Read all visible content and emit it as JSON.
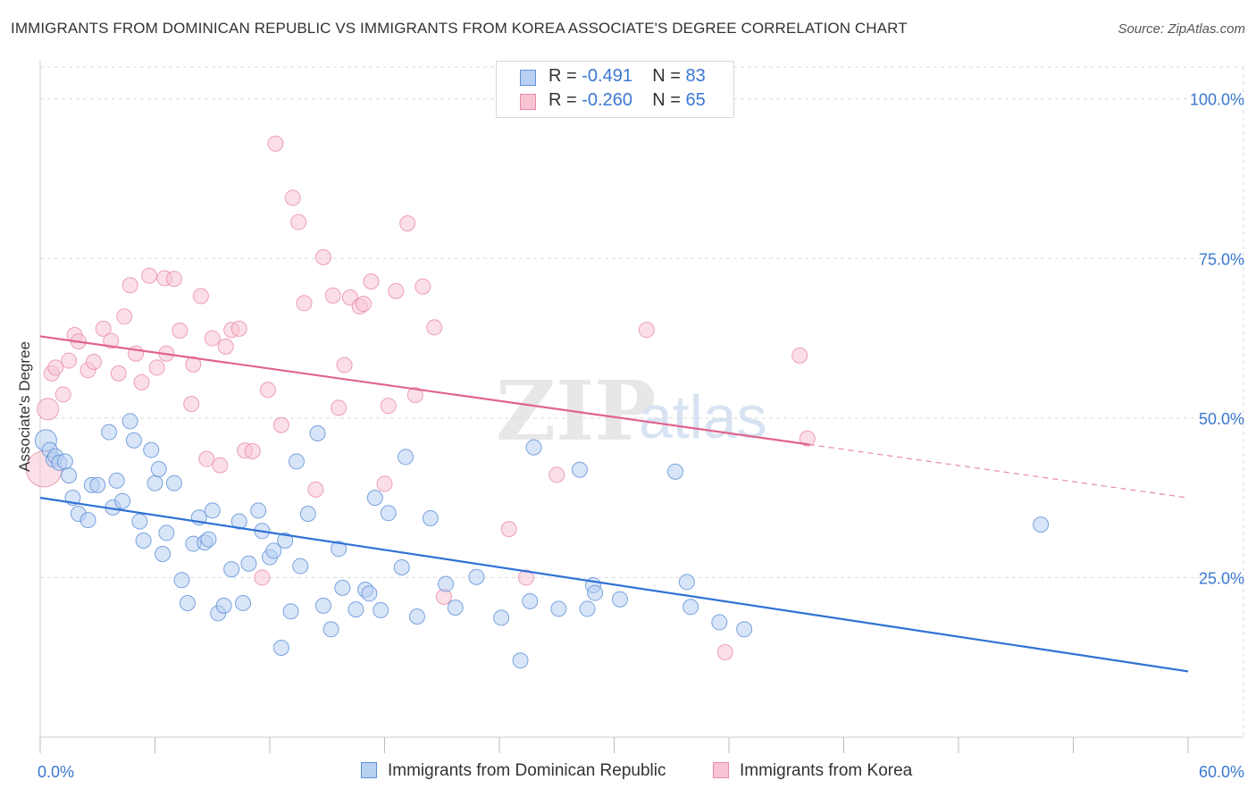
{
  "header": {
    "title": "IMMIGRANTS FROM DOMINICAN REPUBLIC VS IMMIGRANTS FROM KOREA ASSOCIATE'S DEGREE CORRELATION CHART",
    "source": "Source: ZipAtlas.com"
  },
  "watermark": {
    "zip": "ZIP",
    "atlas": "atlas"
  },
  "legend": {
    "r_label": "R =",
    "n_label": "N =",
    "rows": [
      {
        "r": "-0.491",
        "n": "83",
        "color": "#5b8fd6"
      },
      {
        "r": "-0.260",
        "n": "65",
        "color": "#e88aa6"
      }
    ]
  },
  "bottom_legend": [
    {
      "label": "Immigrants from Dominican Republic",
      "color": "#5b8fd6"
    },
    {
      "label": "Immigrants from Korea",
      "color": "#e88aa6"
    }
  ],
  "chart_data": {
    "type": "scatter",
    "title": "IMMIGRANTS FROM DOMINICAN REPUBLIC VS IMMIGRANTS FROM KOREA ASSOCIATE'S DEGREE CORRELATION CHART",
    "ylabel": "Associate's Degree",
    "xlim": [
      0,
      60
    ],
    "ylim": [
      0,
      105
    ],
    "x_ticks": [
      {
        "value": 0,
        "label": "0.0%"
      },
      {
        "value": 60,
        "label": "60.0%"
      }
    ],
    "y_ticks": [
      {
        "value": 25,
        "label": "25.0%"
      },
      {
        "value": 50,
        "label": "50.0%"
      },
      {
        "value": 75,
        "label": "75.0%"
      },
      {
        "value": 100,
        "label": "100.0%"
      }
    ],
    "grid": true,
    "legend_position": "top-center",
    "series": [
      {
        "name": "Immigrants from Dominican Republic",
        "color": "#5b8fd6",
        "fill": "#b8d0f2",
        "trend": {
          "x": [
            0,
            60
          ],
          "y": [
            37.5,
            10.3
          ],
          "dashed_from": null
        },
        "points": [
          [
            0.3,
            46.5
          ],
          [
            0.5,
            45.0
          ],
          [
            0.7,
            43.5
          ],
          [
            0.8,
            44.0
          ],
          [
            1.0,
            43.0
          ],
          [
            1.3,
            43.2
          ],
          [
            1.5,
            41.0
          ],
          [
            1.7,
            37.5
          ],
          [
            2.0,
            35.0
          ],
          [
            2.5,
            34.0
          ],
          [
            2.7,
            39.5
          ],
          [
            3.0,
            39.5
          ],
          [
            3.6,
            47.8
          ],
          [
            3.8,
            36.0
          ],
          [
            4.0,
            40.2
          ],
          [
            4.3,
            37.0
          ],
          [
            4.7,
            49.5
          ],
          [
            4.9,
            46.5
          ],
          [
            5.2,
            33.8
          ],
          [
            5.4,
            30.8
          ],
          [
            5.8,
            45.0
          ],
          [
            6.0,
            39.8
          ],
          [
            6.2,
            42.0
          ],
          [
            6.4,
            28.7
          ],
          [
            6.6,
            32.0
          ],
          [
            7.0,
            39.8
          ],
          [
            7.4,
            24.6
          ],
          [
            7.7,
            21.0
          ],
          [
            8.0,
            30.3
          ],
          [
            8.3,
            34.4
          ],
          [
            8.6,
            30.5
          ],
          [
            8.8,
            31.0
          ],
          [
            9.0,
            35.5
          ],
          [
            9.3,
            19.4
          ],
          [
            9.6,
            20.6
          ],
          [
            10.0,
            26.3
          ],
          [
            10.4,
            33.8
          ],
          [
            10.6,
            21.0
          ],
          [
            10.9,
            27.2
          ],
          [
            11.4,
            35.5
          ],
          [
            11.6,
            32.3
          ],
          [
            12.0,
            28.2
          ],
          [
            12.2,
            29.2
          ],
          [
            12.6,
            14.0
          ],
          [
            12.8,
            30.8
          ],
          [
            13.1,
            19.7
          ],
          [
            13.4,
            43.2
          ],
          [
            13.6,
            26.8
          ],
          [
            14.0,
            35.0
          ],
          [
            14.5,
            47.6
          ],
          [
            14.8,
            20.6
          ],
          [
            15.2,
            16.9
          ],
          [
            15.6,
            29.5
          ],
          [
            15.8,
            23.4
          ],
          [
            16.5,
            20.0
          ],
          [
            17.0,
            23.1
          ],
          [
            17.2,
            22.5
          ],
          [
            17.5,
            37.5
          ],
          [
            17.8,
            19.9
          ],
          [
            18.2,
            35.1
          ],
          [
            18.9,
            26.6
          ],
          [
            19.1,
            43.9
          ],
          [
            19.7,
            18.9
          ],
          [
            20.4,
            34.3
          ],
          [
            21.2,
            24.0
          ],
          [
            21.7,
            20.3
          ],
          [
            22.8,
            25.1
          ],
          [
            24.1,
            18.7
          ],
          [
            25.1,
            12.0
          ],
          [
            25.6,
            21.3
          ],
          [
            25.8,
            45.4
          ],
          [
            27.1,
            20.1
          ],
          [
            28.2,
            41.9
          ],
          [
            28.6,
            20.1
          ],
          [
            28.9,
            23.8
          ],
          [
            29.0,
            22.6
          ],
          [
            30.3,
            21.6
          ],
          [
            33.2,
            41.6
          ],
          [
            33.8,
            24.3
          ],
          [
            34.0,
            20.4
          ],
          [
            35.5,
            18.0
          ],
          [
            36.8,
            16.9
          ],
          [
            52.3,
            33.3
          ]
        ]
      },
      {
        "name": "Immigrants from Korea",
        "color": "#e88aa6",
        "fill": "#f7c4d3",
        "trend": {
          "x": [
            0,
            60
          ],
          "y": [
            62.8,
            37.5
          ],
          "dashed_from": 40.2
        },
        "points": [
          [
            0.2,
            42.0
          ],
          [
            0.4,
            51.4
          ],
          [
            0.6,
            57.0
          ],
          [
            0.8,
            57.9
          ],
          [
            1.2,
            53.7
          ],
          [
            1.5,
            59.0
          ],
          [
            1.8,
            63.0
          ],
          [
            2.0,
            62.0
          ],
          [
            2.5,
            57.5
          ],
          [
            2.8,
            58.8
          ],
          [
            3.3,
            64.0
          ],
          [
            3.7,
            62.1
          ],
          [
            4.1,
            57.0
          ],
          [
            4.4,
            65.9
          ],
          [
            4.7,
            70.8
          ],
          [
            5.0,
            60.1
          ],
          [
            5.3,
            55.6
          ],
          [
            5.7,
            72.3
          ],
          [
            6.1,
            57.9
          ],
          [
            6.5,
            71.9
          ],
          [
            6.6,
            60.1
          ],
          [
            7.0,
            71.8
          ],
          [
            7.3,
            63.7
          ],
          [
            7.9,
            52.2
          ],
          [
            8.0,
            58.4
          ],
          [
            8.4,
            69.1
          ],
          [
            8.7,
            43.6
          ],
          [
            9.0,
            62.5
          ],
          [
            9.4,
            42.6
          ],
          [
            9.7,
            61.2
          ],
          [
            10.0,
            63.8
          ],
          [
            10.4,
            64.0
          ],
          [
            10.7,
            44.9
          ],
          [
            11.1,
            44.8
          ],
          [
            11.6,
            25.0
          ],
          [
            11.9,
            54.4
          ],
          [
            12.3,
            93.0
          ],
          [
            12.6,
            48.9
          ],
          [
            13.2,
            84.5
          ],
          [
            13.5,
            80.7
          ],
          [
            13.8,
            68.0
          ],
          [
            14.4,
            38.8
          ],
          [
            14.8,
            75.2
          ],
          [
            15.3,
            69.2
          ],
          [
            15.6,
            51.6
          ],
          [
            15.9,
            58.3
          ],
          [
            16.2,
            68.9
          ],
          [
            16.7,
            67.5
          ],
          [
            16.9,
            67.9
          ],
          [
            17.3,
            71.4
          ],
          [
            18.0,
            39.7
          ],
          [
            18.2,
            51.9
          ],
          [
            18.6,
            69.9
          ],
          [
            19.2,
            80.5
          ],
          [
            19.6,
            53.6
          ],
          [
            20.0,
            70.6
          ],
          [
            20.6,
            64.2
          ],
          [
            21.1,
            22.0
          ],
          [
            24.5,
            32.6
          ],
          [
            25.4,
            25.0
          ],
          [
            27.0,
            41.1
          ],
          [
            31.7,
            63.8
          ],
          [
            35.8,
            13.3
          ],
          [
            39.7,
            59.8
          ],
          [
            40.1,
            46.8
          ]
        ]
      }
    ]
  }
}
